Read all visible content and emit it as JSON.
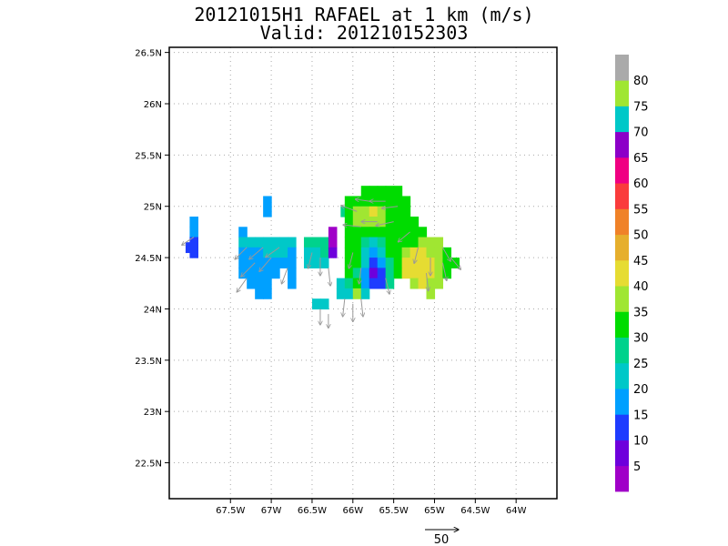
{
  "title": {
    "line1": "20121015H1 RAFAEL at 1 km (m/s)",
    "line2": "Valid: 201210152303"
  },
  "chart_data": {
    "type": "heatmap",
    "title": "20121015H1 RAFAEL at 1 km (m/s)",
    "subtitle": "Valid: 201210152303",
    "xlim": [
      -68.25,
      -63.5
    ],
    "ylim": [
      22.15,
      26.55
    ],
    "x_ticks": [
      {
        "value": -67.5,
        "label": "67.5W"
      },
      {
        "value": -67.0,
        "label": "67W"
      },
      {
        "value": -66.5,
        "label": "66.5W"
      },
      {
        "value": -66.0,
        "label": "66W"
      },
      {
        "value": -65.5,
        "label": "65.5W"
      },
      {
        "value": -65.0,
        "label": "65W"
      },
      {
        "value": -64.5,
        "label": "64.5W"
      },
      {
        "value": -64.0,
        "label": "64W"
      }
    ],
    "y_ticks": [
      {
        "value": 22.5,
        "label": "22.5N"
      },
      {
        "value": 23.0,
        "label": "23N"
      },
      {
        "value": 23.5,
        "label": "23.5N"
      },
      {
        "value": 24.0,
        "label": "24N"
      },
      {
        "value": 24.5,
        "label": "24.5N"
      },
      {
        "value": 25.0,
        "label": "25N"
      },
      {
        "value": 25.5,
        "label": "25.5N"
      },
      {
        "value": 26.0,
        "label": "26N"
      },
      {
        "value": 26.5,
        "label": "26.5N"
      }
    ],
    "grid": "dotted",
    "colorbar": {
      "position": "right",
      "labels": [
        "5",
        "10",
        "15",
        "20",
        "25",
        "30",
        "35",
        "40",
        "45",
        "50",
        "55",
        "60",
        "65",
        "70",
        "75",
        "80"
      ],
      "colors": [
        "#a000c8",
        "#6e00dc",
        "#1e3cff",
        "#00a0ff",
        "#00c8c8",
        "#00d28c",
        "#00dc00",
        "#a0e632",
        "#e6dc32",
        "#e6af2d",
        "#f08228",
        "#fa3c3c",
        "#f00082",
        "#8c00c8",
        "#00c8c8",
        "#a0e632",
        "#aaaaaa"
      ]
    },
    "cells": [
      {
        "lon": -67.95,
        "lat": 24.85,
        "v": 20
      },
      {
        "lon": -67.95,
        "lat": 24.75,
        "v": 20
      },
      {
        "lon": -67.95,
        "lat": 24.65,
        "v": 15
      },
      {
        "lon": -67.95,
        "lat": 24.55,
        "v": 15
      },
      {
        "lon": -68.0,
        "lat": 24.6,
        "v": 15
      },
      {
        "lon": -67.05,
        "lat": 25.05,
        "v": 20
      },
      {
        "lon": -67.05,
        "lat": 24.95,
        "v": 20
      },
      {
        "lon": -67.35,
        "lat": 24.75,
        "v": 20
      },
      {
        "lon": -67.35,
        "lat": 24.65,
        "v": 25
      },
      {
        "lon": -67.35,
        "lat": 24.55,
        "v": 20
      },
      {
        "lon": -67.35,
        "lat": 24.45,
        "v": 20
      },
      {
        "lon": -67.35,
        "lat": 24.35,
        "v": 20
      },
      {
        "lon": -67.25,
        "lat": 24.65,
        "v": 25
      },
      {
        "lon": -67.25,
        "lat": 24.55,
        "v": 20
      },
      {
        "lon": -67.25,
        "lat": 24.45,
        "v": 20
      },
      {
        "lon": -67.25,
        "lat": 24.35,
        "v": 20
      },
      {
        "lon": -67.25,
        "lat": 24.25,
        "v": 20
      },
      {
        "lon": -67.15,
        "lat": 24.65,
        "v": 25
      },
      {
        "lon": -67.15,
        "lat": 24.55,
        "v": 20
      },
      {
        "lon": -67.15,
        "lat": 24.45,
        "v": 20
      },
      {
        "lon": -67.15,
        "lat": 24.35,
        "v": 20
      },
      {
        "lon": -67.15,
        "lat": 24.25,
        "v": 20
      },
      {
        "lon": -67.15,
        "lat": 24.15,
        "v": 20
      },
      {
        "lon": -67.05,
        "lat": 24.65,
        "v": 25
      },
      {
        "lon": -67.05,
        "lat": 24.55,
        "v": 25
      },
      {
        "lon": -67.05,
        "lat": 24.45,
        "v": 20
      },
      {
        "lon": -67.05,
        "lat": 24.35,
        "v": 20
      },
      {
        "lon": -67.05,
        "lat": 24.25,
        "v": 20
      },
      {
        "lon": -67.05,
        "lat": 24.15,
        "v": 20
      },
      {
        "lon": -66.95,
        "lat": 24.65,
        "v": 25
      },
      {
        "lon": -66.95,
        "lat": 24.55,
        "v": 25
      },
      {
        "lon": -66.95,
        "lat": 24.45,
        "v": 20
      },
      {
        "lon": -66.95,
        "lat": 24.35,
        "v": 20
      },
      {
        "lon": -66.85,
        "lat": 24.65,
        "v": 25
      },
      {
        "lon": -66.85,
        "lat": 24.55,
        "v": 25
      },
      {
        "lon": -66.85,
        "lat": 24.45,
        "v": 20
      },
      {
        "lon": -66.75,
        "lat": 24.65,
        "v": 25
      },
      {
        "lon": -66.75,
        "lat": 24.55,
        "v": 20
      },
      {
        "lon": -66.75,
        "lat": 24.45,
        "v": 20
      },
      {
        "lon": -66.75,
        "lat": 24.35,
        "v": 20
      },
      {
        "lon": -66.75,
        "lat": 24.25,
        "v": 20
      },
      {
        "lon": -66.55,
        "lat": 24.65,
        "v": 30
      },
      {
        "lon": -66.55,
        "lat": 24.55,
        "v": 25
      },
      {
        "lon": -66.55,
        "lat": 24.45,
        "v": 25
      },
      {
        "lon": -66.45,
        "lat": 24.65,
        "v": 30
      },
      {
        "lon": -66.45,
        "lat": 24.55,
        "v": 25
      },
      {
        "lon": -66.45,
        "lat": 24.45,
        "v": 25
      },
      {
        "lon": -66.35,
        "lat": 24.65,
        "v": 30
      },
      {
        "lon": -66.35,
        "lat": 24.55,
        "v": 30
      },
      {
        "lon": -66.35,
        "lat": 24.45,
        "v": 25
      },
      {
        "lon": -66.25,
        "lat": 24.75,
        "v": 5
      },
      {
        "lon": -66.25,
        "lat": 24.65,
        "v": 5
      },
      {
        "lon": -66.25,
        "lat": 24.55,
        "v": 10
      },
      {
        "lon": -66.45,
        "lat": 24.05,
        "v": 25
      },
      {
        "lon": -66.35,
        "lat": 24.05,
        "v": 25
      },
      {
        "lon": -66.1,
        "lat": 24.95,
        "v": 30
      },
      {
        "lon": -66.05,
        "lat": 24.95,
        "v": 35
      },
      {
        "lon": -66.05,
        "lat": 25.05,
        "v": 35
      },
      {
        "lon": -65.95,
        "lat": 25.05,
        "v": 35
      },
      {
        "lon": -65.85,
        "lat": 25.15,
        "v": 35
      },
      {
        "lon": -65.75,
        "lat": 25.15,
        "v": 35
      },
      {
        "lon": -65.65,
        "lat": 25.15,
        "v": 35
      },
      {
        "lon": -65.55,
        "lat": 25.15,
        "v": 35
      },
      {
        "lon": -65.45,
        "lat": 25.15,
        "v": 35
      },
      {
        "lon": -65.35,
        "lat": 25.05,
        "v": 35
      },
      {
        "lon": -65.95,
        "lat": 24.95,
        "v": 40
      },
      {
        "lon": -65.85,
        "lat": 25.05,
        "v": 35
      },
      {
        "lon": -65.85,
        "lat": 24.95,
        "v": 40
      },
      {
        "lon": -65.75,
        "lat": 25.05,
        "v": 35
      },
      {
        "lon": -65.75,
        "lat": 24.95,
        "v": 45
      },
      {
        "lon": -65.65,
        "lat": 25.05,
        "v": 35
      },
      {
        "lon": -65.65,
        "lat": 24.95,
        "v": 40
      },
      {
        "lon": -65.55,
        "lat": 25.05,
        "v": 35
      },
      {
        "lon": -65.55,
        "lat": 24.95,
        "v": 35
      },
      {
        "lon": -65.45,
        "lat": 25.05,
        "v": 35
      },
      {
        "lon": -65.45,
        "lat": 24.95,
        "v": 35
      },
      {
        "lon": -65.35,
        "lat": 24.95,
        "v": 35
      },
      {
        "lon": -66.05,
        "lat": 24.85,
        "v": 35
      },
      {
        "lon": -65.95,
        "lat": 24.85,
        "v": 40
      },
      {
        "lon": -65.85,
        "lat": 24.85,
        "v": 40
      },
      {
        "lon": -65.75,
        "lat": 24.85,
        "v": 40
      },
      {
        "lon": -65.65,
        "lat": 24.85,
        "v": 40
      },
      {
        "lon": -65.55,
        "lat": 24.85,
        "v": 35
      },
      {
        "lon": -65.45,
        "lat": 24.85,
        "v": 35
      },
      {
        "lon": -65.35,
        "lat": 24.85,
        "v": 35
      },
      {
        "lon": -65.25,
        "lat": 24.85,
        "v": 35
      },
      {
        "lon": -66.05,
        "lat": 24.75,
        "v": 35
      },
      {
        "lon": -65.95,
        "lat": 24.75,
        "v": 35
      },
      {
        "lon": -65.85,
        "lat": 24.75,
        "v": 35
      },
      {
        "lon": -65.75,
        "lat": 24.75,
        "v": 35
      },
      {
        "lon": -65.65,
        "lat": 24.75,
        "v": 35
      },
      {
        "lon": -65.55,
        "lat": 24.75,
        "v": 35
      },
      {
        "lon": -65.45,
        "lat": 24.75,
        "v": 35
      },
      {
        "lon": -65.35,
        "lat": 24.75,
        "v": 35
      },
      {
        "lon": -65.25,
        "lat": 24.75,
        "v": 35
      },
      {
        "lon": -65.15,
        "lat": 24.75,
        "v": 35
      },
      {
        "lon": -66.05,
        "lat": 24.65,
        "v": 35
      },
      {
        "lon": -65.95,
        "lat": 24.65,
        "v": 35
      },
      {
        "lon": -65.85,
        "lat": 24.65,
        "v": 30
      },
      {
        "lon": -65.75,
        "lat": 24.65,
        "v": 25
      },
      {
        "lon": -65.65,
        "lat": 24.65,
        "v": 30
      },
      {
        "lon": -65.55,
        "lat": 24.65,
        "v": 35
      },
      {
        "lon": -65.45,
        "lat": 24.65,
        "v": 35
      },
      {
        "lon": -65.35,
        "lat": 24.65,
        "v": 35
      },
      {
        "lon": -65.25,
        "lat": 24.65,
        "v": 35
      },
      {
        "lon": -65.15,
        "lat": 24.65,
        "v": 40
      },
      {
        "lon": -65.05,
        "lat": 24.65,
        "v": 40
      },
      {
        "lon": -64.95,
        "lat": 24.65,
        "v": 40
      },
      {
        "lon": -66.05,
        "lat": 24.55,
        "v": 35
      },
      {
        "lon": -65.95,
        "lat": 24.55,
        "v": 35
      },
      {
        "lon": -65.85,
        "lat": 24.55,
        "v": 25
      },
      {
        "lon": -65.75,
        "lat": 24.55,
        "v": 20
      },
      {
        "lon": -65.65,
        "lat": 24.55,
        "v": 25
      },
      {
        "lon": -65.55,
        "lat": 24.55,
        "v": 35
      },
      {
        "lon": -65.45,
        "lat": 24.55,
        "v": 35
      },
      {
        "lon": -65.35,
        "lat": 24.55,
        "v": 40
      },
      {
        "lon": -65.25,
        "lat": 24.55,
        "v": 45
      },
      {
        "lon": -65.15,
        "lat": 24.55,
        "v": 45
      },
      {
        "lon": -65.05,
        "lat": 24.55,
        "v": 40
      },
      {
        "lon": -64.95,
        "lat": 24.55,
        "v": 40
      },
      {
        "lon": -64.85,
        "lat": 24.55,
        "v": 35
      },
      {
        "lon": -66.05,
        "lat": 24.45,
        "v": 35
      },
      {
        "lon": -65.95,
        "lat": 24.45,
        "v": 35
      },
      {
        "lon": -65.85,
        "lat": 24.45,
        "v": 25
      },
      {
        "lon": -65.75,
        "lat": 24.45,
        "v": 15
      },
      {
        "lon": -65.65,
        "lat": 24.45,
        "v": 20
      },
      {
        "lon": -65.55,
        "lat": 24.45,
        "v": 30
      },
      {
        "lon": -65.45,
        "lat": 24.45,
        "v": 35
      },
      {
        "lon": -65.35,
        "lat": 24.45,
        "v": 45
      },
      {
        "lon": -65.25,
        "lat": 24.45,
        "v": 45
      },
      {
        "lon": -65.15,
        "lat": 24.45,
        "v": 45
      },
      {
        "lon": -65.05,
        "lat": 24.45,
        "v": 45
      },
      {
        "lon": -64.95,
        "lat": 24.45,
        "v": 40
      },
      {
        "lon": -64.85,
        "lat": 24.45,
        "v": 35
      },
      {
        "lon": -64.75,
        "lat": 24.45,
        "v": 35
      },
      {
        "lon": -66.05,
        "lat": 24.35,
        "v": 35
      },
      {
        "lon": -65.95,
        "lat": 24.35,
        "v": 30
      },
      {
        "lon": -65.85,
        "lat": 24.35,
        "v": 20
      },
      {
        "lon": -65.75,
        "lat": 24.35,
        "v": 10
      },
      {
        "lon": -65.65,
        "lat": 24.35,
        "v": 15
      },
      {
        "lon": -65.55,
        "lat": 24.35,
        "v": 30
      },
      {
        "lon": -65.45,
        "lat": 24.35,
        "v": 35
      },
      {
        "lon": -65.35,
        "lat": 24.35,
        "v": 45
      },
      {
        "lon": -65.25,
        "lat": 24.35,
        "v": 45
      },
      {
        "lon": -65.15,
        "lat": 24.35,
        "v": 45
      },
      {
        "lon": -65.05,
        "lat": 24.35,
        "v": 45
      },
      {
        "lon": -64.95,
        "lat": 24.35,
        "v": 40
      },
      {
        "lon": -64.85,
        "lat": 24.35,
        "v": 35
      },
      {
        "lon": -66.15,
        "lat": 24.25,
        "v": 25
      },
      {
        "lon": -66.05,
        "lat": 24.25,
        "v": 30
      },
      {
        "lon": -65.95,
        "lat": 24.25,
        "v": 35
      },
      {
        "lon": -65.85,
        "lat": 24.25,
        "v": 20
      },
      {
        "lon": -65.75,
        "lat": 24.25,
        "v": 15
      },
      {
        "lon": -65.65,
        "lat": 24.25,
        "v": 15
      },
      {
        "lon": -65.55,
        "lat": 24.25,
        "v": 30
      },
      {
        "lon": -65.25,
        "lat": 24.25,
        "v": 40
      },
      {
        "lon": -65.15,
        "lat": 24.25,
        "v": 45
      },
      {
        "lon": -65.05,
        "lat": 24.25,
        "v": 40
      },
      {
        "lon": -64.95,
        "lat": 24.25,
        "v": 40
      },
      {
        "lon": -66.15,
        "lat": 24.15,
        "v": 25
      },
      {
        "lon": -66.05,
        "lat": 24.15,
        "v": 25
      },
      {
        "lon": -65.95,
        "lat": 24.15,
        "v": 40
      },
      {
        "lon": -65.85,
        "lat": 24.15,
        "v": 25
      },
      {
        "lon": -65.05,
        "lat": 24.15,
        "v": 40
      }
    ],
    "vectors_note": "wind vectors (gray arrows)",
    "vectors": [
      {
        "lon": -67.95,
        "lat": 24.7,
        "u": -6,
        "v": -4
      },
      {
        "lon": -67.3,
        "lat": 24.6,
        "u": -6,
        "v": -6
      },
      {
        "lon": -67.2,
        "lat": 24.45,
        "u": -7,
        "v": -7
      },
      {
        "lon": -67.1,
        "lat": 24.6,
        "u": -7,
        "v": -6
      },
      {
        "lon": -67.0,
        "lat": 24.5,
        "u": -6,
        "v": -7
      },
      {
        "lon": -66.9,
        "lat": 24.6,
        "u": -7,
        "v": -5
      },
      {
        "lon": -67.3,
        "lat": 24.3,
        "u": -5,
        "v": -7
      },
      {
        "lon": -66.8,
        "lat": 24.4,
        "u": -3,
        "v": -8
      },
      {
        "lon": -66.5,
        "lat": 24.55,
        "u": -2,
        "v": -8
      },
      {
        "lon": -66.4,
        "lat": 24.5,
        "u": 0,
        "v": -9
      },
      {
        "lon": -66.3,
        "lat": 24.4,
        "u": 1,
        "v": -9
      },
      {
        "lon": -66.4,
        "lat": 24.0,
        "u": 0,
        "v": -8
      },
      {
        "lon": -66.3,
        "lat": 23.95,
        "u": 0,
        "v": -7
      },
      {
        "lon": -66.1,
        "lat": 24.1,
        "u": -1,
        "v": -9
      },
      {
        "lon": -66.0,
        "lat": 24.05,
        "u": 0,
        "v": -9
      },
      {
        "lon": -65.9,
        "lat": 24.1,
        "u": 1,
        "v": -9
      },
      {
        "lon": -65.95,
        "lat": 24.95,
        "u": -8,
        "v": 3
      },
      {
        "lon": -65.8,
        "lat": 25.05,
        "u": -7,
        "v": 1
      },
      {
        "lon": -65.6,
        "lat": 25.05,
        "u": -8,
        "v": 0
      },
      {
        "lon": -65.45,
        "lat": 25.0,
        "u": -8,
        "v": -1
      },
      {
        "lon": -65.9,
        "lat": 24.8,
        "u": -9,
        "v": 1
      },
      {
        "lon": -65.7,
        "lat": 24.85,
        "u": -8,
        "v": 0
      },
      {
        "lon": -65.5,
        "lat": 24.85,
        "u": -9,
        "v": -2
      },
      {
        "lon": -65.3,
        "lat": 24.75,
        "u": -6,
        "v": -5
      },
      {
        "lon": -65.2,
        "lat": 24.6,
        "u": -2,
        "v": -8
      },
      {
        "lon": -65.05,
        "lat": 24.5,
        "u": 0,
        "v": -9
      },
      {
        "lon": -64.9,
        "lat": 24.45,
        "u": 2,
        "v": -9
      },
      {
        "lon": -65.1,
        "lat": 24.35,
        "u": 1,
        "v": -9
      },
      {
        "lon": -64.9,
        "lat": 24.6,
        "u": 4,
        "v": -7
      },
      {
        "lon": -64.8,
        "lat": 24.5,
        "u": 5,
        "v": -6
      },
      {
        "lon": -66.0,
        "lat": 24.55,
        "u": -2,
        "v": -8
      },
      {
        "lon": -65.9,
        "lat": 24.4,
        "u": -1,
        "v": -8
      },
      {
        "lon": -65.6,
        "lat": 24.3,
        "u": 2,
        "v": -8
      }
    ],
    "reference_vector": {
      "value": 50,
      "label": "50"
    }
  }
}
